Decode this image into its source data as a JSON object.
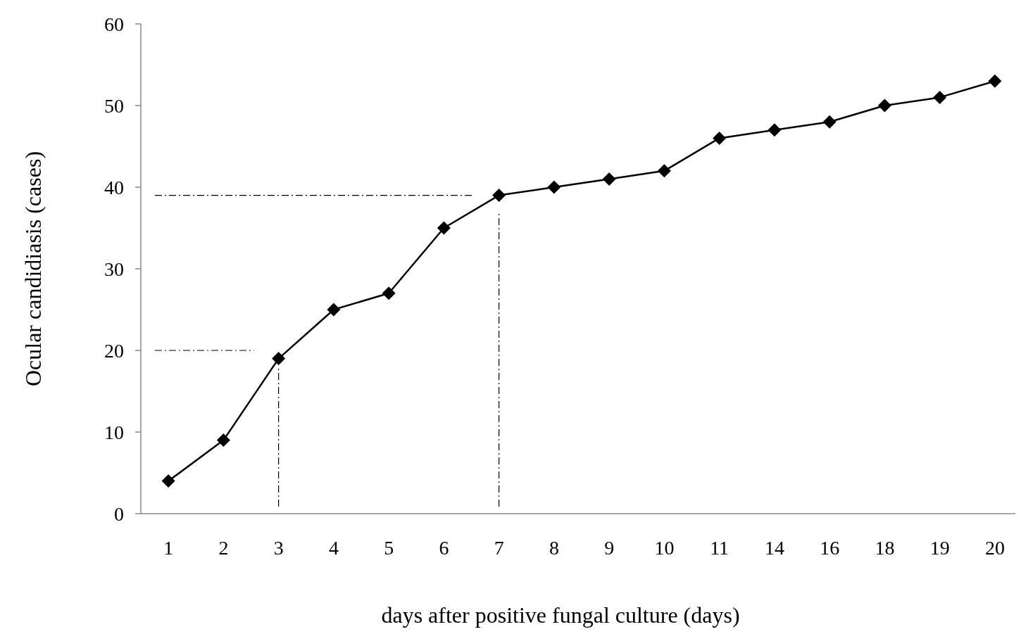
{
  "chart_data": {
    "type": "line",
    "xlabel": "days after positive fungal culture (days)",
    "ylabel": "Ocular candidiasis (cases)",
    "categories": [
      "1",
      "2",
      "3",
      "4",
      "5",
      "6",
      "7",
      "8",
      "9",
      "10",
      "11",
      "14",
      "16",
      "18",
      "19",
      "20"
    ],
    "series": [
      {
        "color": "#000000",
        "values": [
          4,
          9,
          19,
          25,
          27,
          35,
          39,
          40,
          41,
          42,
          46,
          47,
          48,
          50,
          51,
          53
        ]
      }
    ],
    "ylim": [
      0,
      60
    ],
    "yticks": [
      0,
      10,
      20,
      30,
      40,
      50,
      60
    ],
    "grid": false,
    "marker": "diamond",
    "line_style": "solid",
    "ref_lines": [
      {
        "axis": "y",
        "value": 20,
        "line_style": "dashed",
        "color": "#000000"
      },
      {
        "axis": "x",
        "value": "3",
        "line_style": "dashed",
        "color": "#000000"
      },
      {
        "axis": "y",
        "value": 39,
        "line_style": "dashed",
        "color": "#000000"
      },
      {
        "axis": "x",
        "value": "7",
        "line_style": "dashed",
        "color": "#000000"
      }
    ]
  }
}
